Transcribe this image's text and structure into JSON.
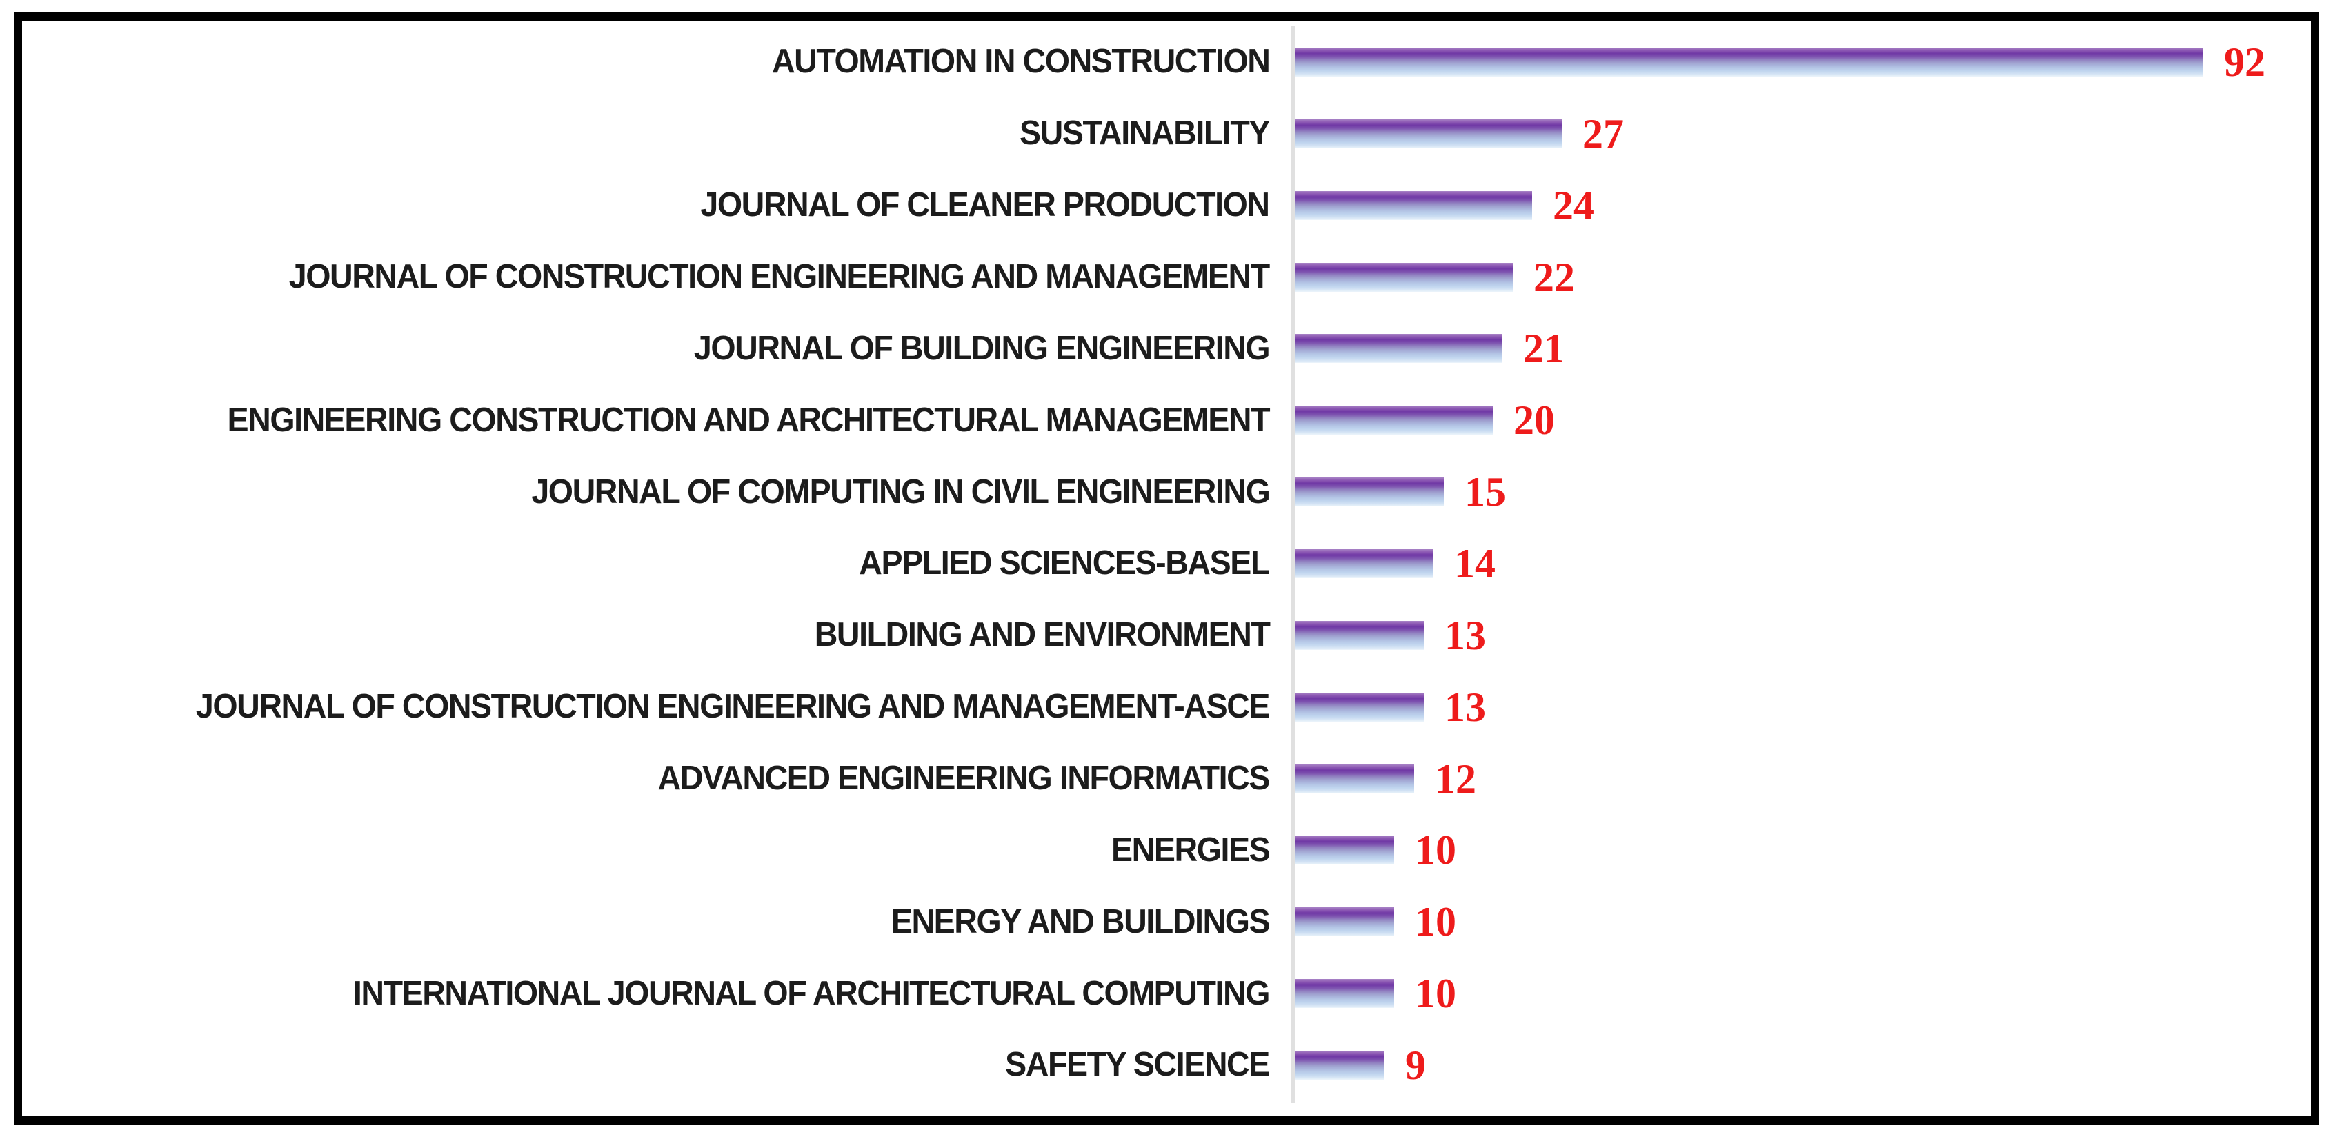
{
  "frame": {
    "border_color": "#000000",
    "background": "#ffffff"
  },
  "chart_data": {
    "type": "bar",
    "orientation": "horizontal",
    "title": "",
    "xlabel": "",
    "ylabel": "",
    "categories": [
      "AUTOMATION IN CONSTRUCTION",
      "SUSTAINABILITY",
      "JOURNAL OF CLEANER PRODUCTION",
      "JOURNAL OF CONSTRUCTION ENGINEERING AND MANAGEMENT",
      "JOURNAL OF BUILDING ENGINEERING",
      "ENGINEERING CONSTRUCTION AND ARCHITECTURAL MANAGEMENT",
      "JOURNAL OF COMPUTING IN CIVIL ENGINEERING",
      "APPLIED SCIENCES-BASEL",
      "BUILDING AND ENVIRONMENT",
      "JOURNAL OF CONSTRUCTION ENGINEERING AND MANAGEMENT-ASCE",
      "ADVANCED ENGINEERING INFORMATICS",
      "ENERGIES",
      "ENERGY AND BUILDINGS",
      "INTERNATIONAL JOURNAL OF ARCHITECTURAL COMPUTING",
      "SAFETY SCIENCE"
    ],
    "values": [
      92,
      27,
      24,
      22,
      21,
      20,
      15,
      14,
      13,
      13,
      12,
      10,
      10,
      10,
      9
    ],
    "value_labels": [
      "92",
      "27",
      "24",
      "22",
      "21",
      "20",
      "15",
      "14",
      "13",
      "13",
      "12",
      "10",
      "10",
      "10",
      "9"
    ],
    "xlim": [
      0,
      92
    ],
    "grid": false,
    "legend": false,
    "data_labels_shown": true,
    "colors": {
      "category_label": "#1c1c1c",
      "value_label": "#ee1b1b",
      "axis_line": "#e0e0e0",
      "bar_gradient_top": "#a883c6",
      "bar_gradient_dark_band": "#7038a5",
      "bar_gradient_mid": "#9fa0cf",
      "bar_gradient_bottom": "#ecf4fb"
    }
  }
}
